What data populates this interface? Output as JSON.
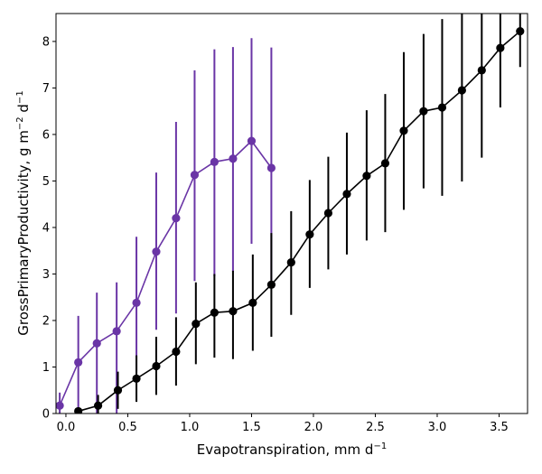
{
  "chart_data": {
    "type": "line",
    "xlabel": "Evapotranspiration,  mm d",
    "xlabel_sup": "−1",
    "ylabel": "GrossPrimaryProductivity,  g m",
    "ylabel_sup1": "−2",
    "ylabel_mid": " d",
    "ylabel_sup2": "−1",
    "xlim": [
      -0.08,
      3.73
    ],
    "ylim": [
      0,
      8.6
    ],
    "xticks": [
      0.0,
      0.5,
      1.0,
      1.5,
      2.0,
      2.5,
      3.0,
      3.5
    ],
    "xtick_labels": [
      "0.0",
      "0.5",
      "1.0",
      "1.5",
      "2.0",
      "2.5",
      "3.0",
      "3.5"
    ],
    "yticks": [
      0,
      1,
      2,
      3,
      4,
      5,
      6,
      7,
      8
    ],
    "ytick_labels": [
      "0",
      "1",
      "2",
      "3",
      "4",
      "5",
      "6",
      "7",
      "8"
    ],
    "grid": false,
    "legend": "none",
    "series": [
      {
        "color": "#6a35a6",
        "x": [
          -0.05,
          0.1,
          0.25,
          0.41,
          0.57,
          0.73,
          0.89,
          1.04,
          1.2,
          1.35,
          1.5,
          1.66
        ],
        "y": [
          0.17,
          1.1,
          1.51,
          1.77,
          2.38,
          3.48,
          4.2,
          5.13,
          5.41,
          5.48,
          5.86,
          5.28
        ],
        "err_low": [
          0.0,
          0.0,
          0.0,
          0.0,
          0.9,
          1.8,
          2.15,
          2.85,
          2.95,
          3.05,
          3.65,
          2.7
        ],
        "err_high": [
          0.45,
          2.1,
          2.6,
          2.82,
          3.8,
          5.18,
          6.27,
          7.38,
          7.83,
          7.88,
          8.07,
          7.87
        ]
      },
      {
        "color": "#000000",
        "x": [
          0.1,
          0.26,
          0.42,
          0.57,
          0.73,
          0.89,
          1.05,
          1.2,
          1.35,
          1.51,
          1.66,
          1.82,
          1.97,
          2.12,
          2.27,
          2.43,
          2.58,
          2.73,
          2.89,
          3.04,
          3.2,
          3.36,
          3.51,
          3.67
        ],
        "y": [
          0.05,
          0.17,
          0.5,
          0.75,
          1.02,
          1.33,
          1.93,
          2.17,
          2.2,
          2.38,
          2.77,
          3.25,
          3.85,
          4.31,
          4.72,
          5.11,
          5.38,
          6.08,
          6.5,
          6.58,
          6.95,
          7.38,
          7.86,
          8.22
        ],
        "err_low": [
          0.0,
          0.0,
          0.1,
          0.25,
          0.4,
          0.6,
          1.06,
          1.2,
          1.17,
          1.35,
          1.65,
          2.12,
          2.7,
          3.1,
          3.42,
          3.72,
          3.9,
          4.38,
          4.84,
          4.68,
          4.99,
          5.5,
          6.58,
          7.45
        ],
        "err_high": [
          0.1,
          0.4,
          0.9,
          1.25,
          1.65,
          2.07,
          2.82,
          3.0,
          3.07,
          3.42,
          3.88,
          4.35,
          5.02,
          5.52,
          6.04,
          6.52,
          6.87,
          7.77,
          8.16,
          8.48,
          8.6,
          8.6,
          8.6,
          8.6
        ]
      }
    ]
  }
}
